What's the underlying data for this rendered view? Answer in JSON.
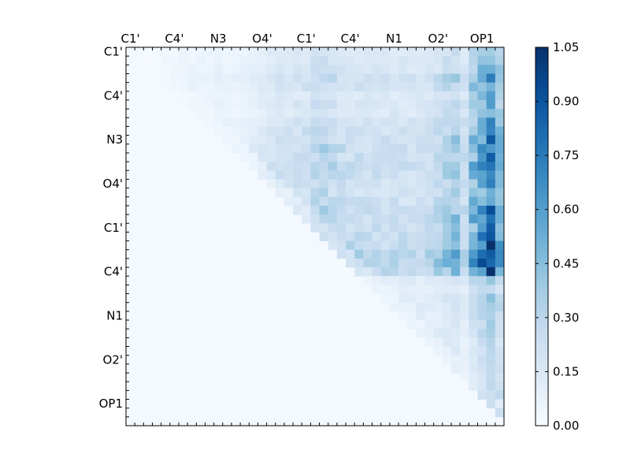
{
  "chart_data": {
    "type": "heatmap",
    "title": "",
    "xlabel": "",
    "ylabel": "",
    "rows": 43,
    "cols": 43,
    "upper_triangular": true,
    "colormap": "Blues",
    "x_tick_labels": [
      "C1'",
      "C4'",
      "N3",
      "O4'",
      "C1'",
      "C4'",
      "N1",
      "O2'",
      "OP1"
    ],
    "y_tick_labels": [
      "C1'",
      "C4'",
      "N3",
      "O4'",
      "C1'",
      "C4'",
      "N1",
      "O2'",
      "OP1"
    ],
    "colorbar": {
      "range": [
        0.0,
        1.05
      ],
      "tick_labels": [
        "1.05",
        "0.90",
        "0.75",
        "0.60",
        "0.45",
        "0.30",
        "0.15",
        "0.00"
      ],
      "tick_values": [
        1.05,
        0.9,
        0.75,
        0.6,
        0.45,
        0.3,
        0.15,
        0.0
      ]
    },
    "col_profile": [
      0.06,
      0.06,
      0.05,
      0.06,
      0.07,
      0.09,
      0.1,
      0.1,
      0.11,
      0.1,
      0.12,
      0.1,
      0.11,
      0.13,
      0.15,
      0.2,
      0.22,
      0.24,
      0.25,
      0.27,
      0.3,
      0.36,
      0.4,
      0.33,
      0.3,
      0.28,
      0.28,
      0.27,
      0.27,
      0.26,
      0.27,
      0.26,
      0.25,
      0.26,
      0.28,
      0.33,
      0.4,
      0.45,
      0.3,
      0.55,
      0.7,
      0.9,
      0.6
    ],
    "row_factor": [
      0.5,
      0.55,
      0.6,
      0.75,
      0.7,
      0.55,
      0.6,
      0.55,
      0.7,
      0.75,
      0.8,
      0.85,
      0.8,
      0.9,
      0.85,
      0.75,
      0.7,
      0.8,
      0.85,
      0.9,
      0.85,
      0.95,
      1.0,
      1.1,
      1.15,
      1.0,
      0.45,
      0.35,
      0.4,
      0.45,
      0.4,
      0.35,
      0.4,
      0.3,
      0.35,
      0.3,
      0.35,
      0.3,
      0.35,
      0.4,
      0.35,
      0.6,
      0.9
    ],
    "background_value": 0.02
  }
}
